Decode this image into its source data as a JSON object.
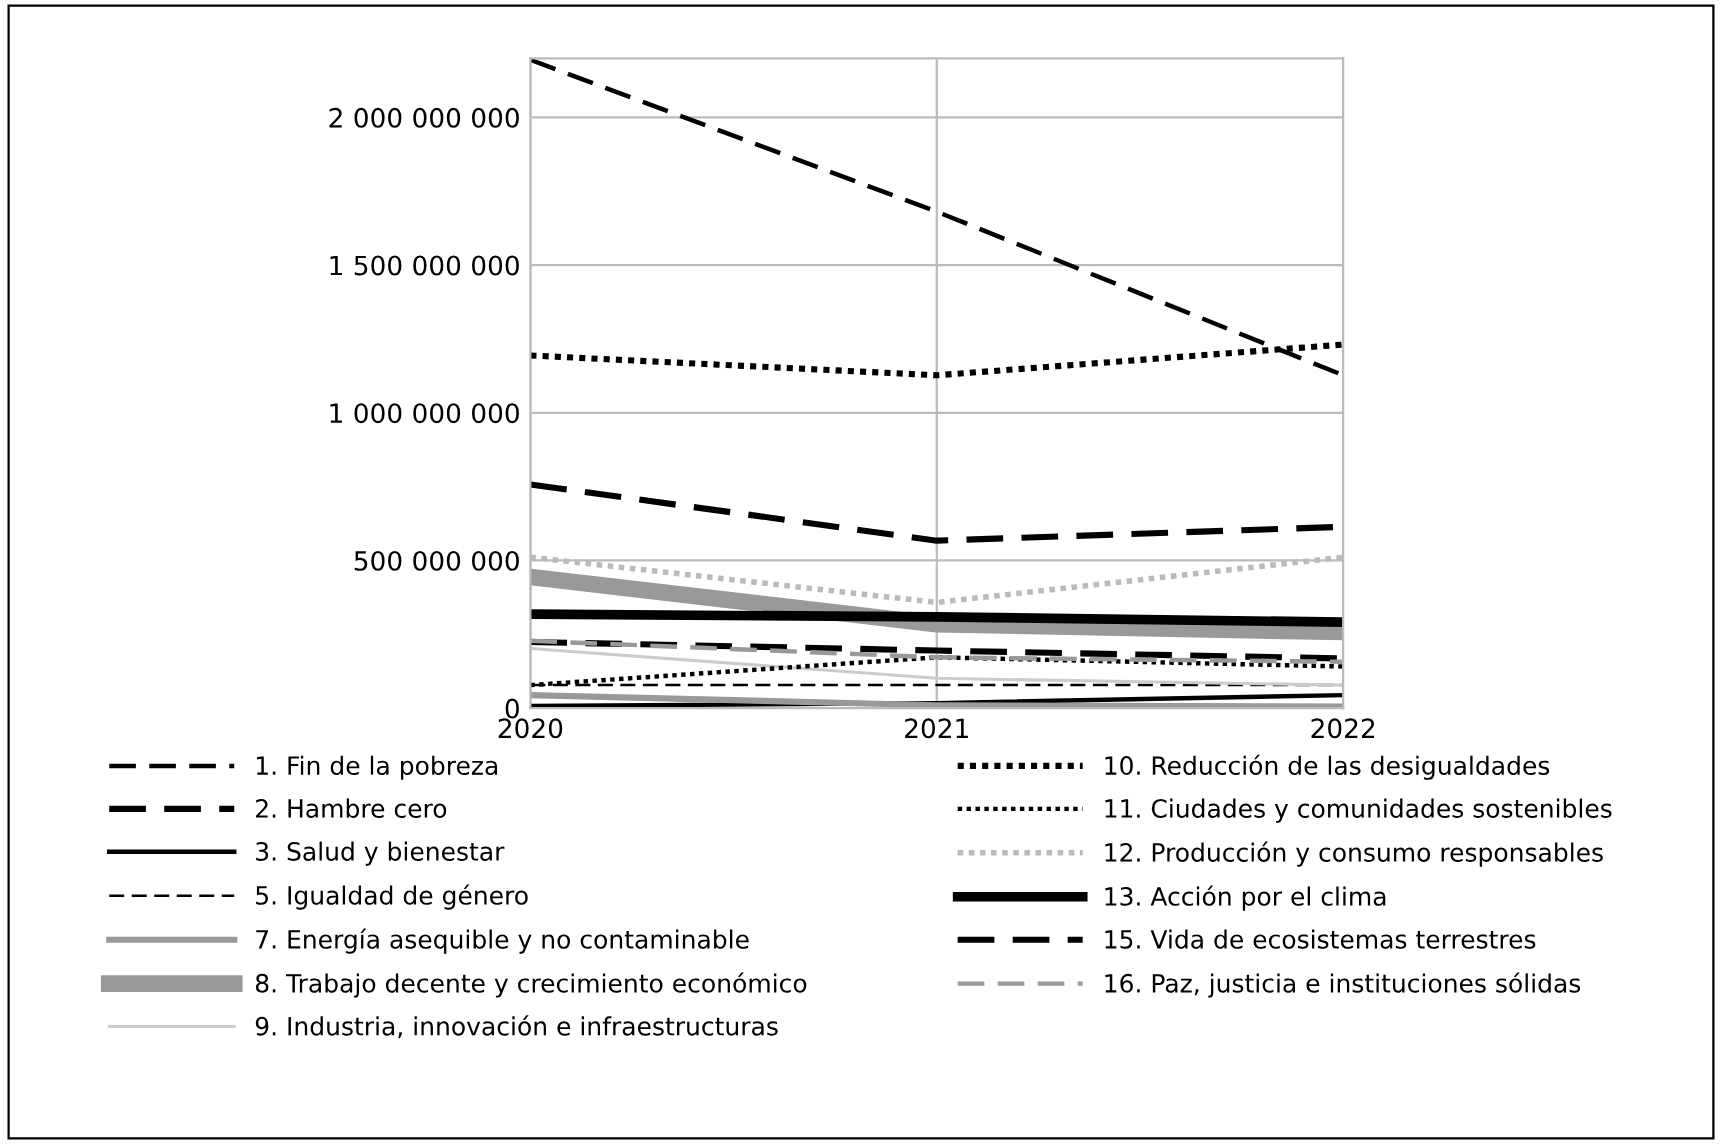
{
  "chart_data": {
    "type": "line",
    "x": [
      2020,
      2021,
      2022
    ],
    "xlim": [
      2020,
      2022
    ],
    "xticks": [
      2020,
      2021,
      2022
    ],
    "ylim": [
      0,
      2200000000
    ],
    "yticks": [
      {
        "value": 0,
        "label": "0"
      },
      {
        "value": 500000000,
        "label": "500 000 000"
      },
      {
        "value": 1000000000,
        "label": "1 000 000 000"
      },
      {
        "value": 1500000000,
        "label": "1 500 000 000"
      },
      {
        "value": 2000000000,
        "label": "2 000 000 000"
      }
    ],
    "grid": true,
    "legend": "bottom",
    "marker": "none",
    "series": [
      {
        "name": "1. Fin de la pobreza",
        "color": "#000000",
        "line_style": "dashed",
        "values": [
          2195000000,
          1681000000,
          1127000000
        ]
      },
      {
        "name": "2. Hambre cero",
        "color": "#000000",
        "line_style": "dashed",
        "values": [
          757000000,
          567000000,
          614000000
        ]
      },
      {
        "name": "3. Salud y bienestar",
        "color": "#000000",
        "line_style": "solid",
        "values": [
          7000000,
          17000000,
          44000000
        ]
      },
      {
        "name": "5. Igualdad de género",
        "color": "#000000",
        "line_style": "dashed",
        "values": [
          78000000,
          78000000,
          78000000
        ]
      },
      {
        "name": "7. Energía asequible y no contaminable",
        "color": "#999999",
        "line_style": "solid",
        "values": [
          44000000,
          10000000,
          5000000
        ]
      },
      {
        "name": "8. Trabajo decente y crecimiento económico",
        "color": "#999999",
        "line_style": "solid",
        "values": [
          444000000,
          284000000,
          258000000
        ]
      },
      {
        "name": "9. Industria, innovación e infraestructuras",
        "color": "#cccccc",
        "line_style": "solid",
        "values": [
          202000000,
          101000000,
          78000000
        ]
      },
      {
        "name": "10. Reducción de las desigualdades",
        "color": "#000000",
        "line_style": "dotted",
        "values": [
          1194000000,
          1127000000,
          1231000000
        ]
      },
      {
        "name": "11. Ciudades y comunidades sostenibles",
        "color": "#000000",
        "line_style": "dotted",
        "values": [
          78000000,
          172000000,
          141000000
        ]
      },
      {
        "name": "12. Producción y consumo responsables",
        "color": "#bbbbbb",
        "line_style": "dotted",
        "values": [
          511000000,
          358000000,
          511000000
        ]
      },
      {
        "name": "13. Acción por el clima",
        "color": "#000000",
        "line_style": "solid",
        "values": [
          318000000,
          309000000,
          291000000
        ]
      },
      {
        "name": "15. Vida de ecosistemas terrestres",
        "color": "#000000",
        "line_style": "dashed",
        "values": [
          224000000,
          195000000,
          168000000
        ]
      },
      {
        "name": "16. Paz, justicia e instituciones sólidas",
        "color": "#999999",
        "line_style": "dashed",
        "values": [
          228000000,
          172000000,
          157000000
        ]
      }
    ]
  }
}
